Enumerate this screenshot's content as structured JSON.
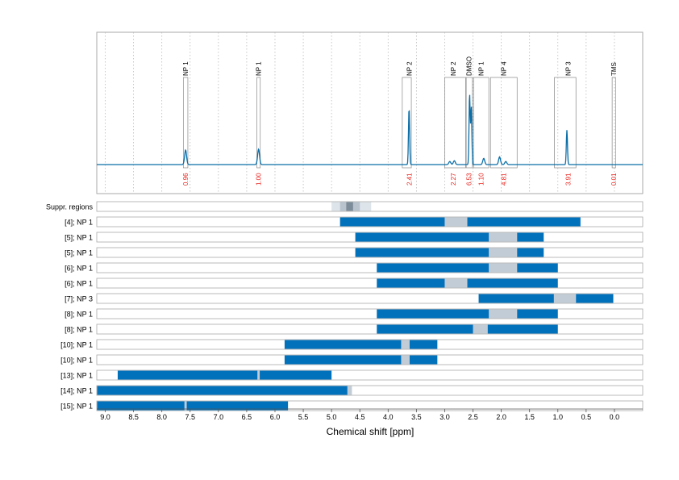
{
  "chart_data": {
    "type": "nmr-spectrum-with-range-bars",
    "xlabel": "Chemical shift [ppm]",
    "xlim": [
      9.15,
      -0.5
    ],
    "x_ticks": [
      "9.0",
      "8.5",
      "8.0",
      "7.5",
      "7.0",
      "6.5",
      "6.0",
      "5.5",
      "5.0",
      "4.5",
      "4.0",
      "3.5",
      "3.0",
      "2.5",
      "2.0",
      "1.5",
      "1.0",
      "0.5",
      "0.0"
    ],
    "colors": {
      "spectrum": "#0a6ea8",
      "bar": "#0271bb",
      "gap": "#c2ccd6",
      "box": "#888888",
      "label_red": "#e8251f",
      "region": "#dde4ea",
      "region_dark": "#7d8c99"
    },
    "spectrum_peaks": [
      {
        "ppm": 7.58,
        "height": 0.19
      },
      {
        "ppm": 6.29,
        "height": 0.2
      },
      {
        "ppm": 3.63,
        "height": 0.74
      },
      {
        "ppm": 2.91,
        "height": 0.04
      },
      {
        "ppm": 2.83,
        "height": 0.05
      },
      {
        "ppm": 2.56,
        "height": 0.92
      },
      {
        "ppm": 2.53,
        "height": 0.75
      },
      {
        "ppm": 2.31,
        "height": 0.08
      },
      {
        "ppm": 2.03,
        "height": 0.1
      },
      {
        "ppm": 1.92,
        "height": 0.04
      },
      {
        "ppm": 0.84,
        "height": 0.45
      }
    ],
    "annotations": [
      {
        "label": "NP 1",
        "center": 7.58,
        "box": [
          7.62,
          7.54
        ],
        "integral": "0.96"
      },
      {
        "label": "NP 1",
        "center": 6.29,
        "box": [
          6.32,
          6.26
        ],
        "integral": "1.00"
      },
      {
        "label": "NP 2",
        "center": 3.63,
        "box": [
          3.75,
          3.59
        ],
        "integral": "2.41"
      },
      {
        "label": "NP 2",
        "center": 2.85,
        "box": [
          3.0,
          2.63
        ],
        "integral": "2.27"
      },
      {
        "label": "DMSO",
        "center": 2.57,
        "box": [
          2.62,
          2.51
        ],
        "integral": "6.53"
      },
      {
        "label": "NP 1",
        "center": 2.36,
        "box": [
          2.49,
          2.22
        ],
        "integral": "1.10"
      },
      {
        "label": "NP 4",
        "center": 1.96,
        "box": [
          2.19,
          1.72
        ],
        "integral": "4.81"
      },
      {
        "label": "NP 3",
        "center": 0.82,
        "box": [
          1.06,
          0.68
        ],
        "integral": "3.91"
      },
      {
        "label": "TMS",
        "center": 0.01,
        "box": [
          0.04,
          -0.02
        ],
        "integral": "0.01"
      }
    ],
    "suppressed_regions": {
      "label": "Suppr. regions",
      "light": [
        5.0,
        4.3
      ],
      "mid": [
        4.85,
        4.5
      ],
      "dark": [
        4.74,
        4.62
      ]
    },
    "rows": [
      {
        "label": "[4]; NP 1",
        "segments": [
          [
            4.85,
            3.0
          ],
          [
            2.6,
            0.6
          ]
        ],
        "gaps": [
          [
            3.0,
            2.6
          ]
        ]
      },
      {
        "label": "[5]; NP 1",
        "segments": [
          [
            4.58,
            2.22
          ],
          [
            1.72,
            1.25
          ]
        ],
        "gaps": [
          [
            2.22,
            1.72
          ]
        ]
      },
      {
        "label": "[5]; NP 1",
        "segments": [
          [
            4.58,
            2.22
          ],
          [
            1.72,
            1.25
          ]
        ],
        "gaps": [
          [
            2.22,
            1.72
          ]
        ]
      },
      {
        "label": "[6]; NP 1",
        "segments": [
          [
            4.2,
            2.22
          ],
          [
            1.72,
            1.0
          ]
        ],
        "gaps": [
          [
            2.22,
            1.72
          ]
        ]
      },
      {
        "label": "[6]; NP 1",
        "segments": [
          [
            4.2,
            3.0
          ],
          [
            2.6,
            1.0
          ]
        ],
        "gaps": [
          [
            3.0,
            2.6
          ]
        ]
      },
      {
        "label": "[7]; NP 3",
        "segments": [
          [
            2.4,
            1.07
          ],
          [
            0.68,
            0.02
          ]
        ],
        "gaps": [
          [
            1.07,
            0.68
          ]
        ]
      },
      {
        "label": "[8]; NP 1",
        "segments": [
          [
            4.2,
            2.22
          ],
          [
            1.72,
            1.0
          ]
        ],
        "gaps": [
          [
            2.22,
            1.72
          ]
        ]
      },
      {
        "label": "[8]; NP 1",
        "segments": [
          [
            4.2,
            2.5
          ],
          [
            2.24,
            1.0
          ]
        ],
        "gaps": [
          [
            2.5,
            2.24
          ]
        ]
      },
      {
        "label": "[10]; NP 1",
        "segments": [
          [
            5.83,
            3.77
          ],
          [
            3.62,
            3.13
          ]
        ],
        "gaps": [
          [
            3.77,
            3.62
          ]
        ]
      },
      {
        "label": "[10]; NP 1",
        "segments": [
          [
            5.83,
            3.77
          ],
          [
            3.62,
            3.13
          ]
        ],
        "gaps": [
          [
            3.77,
            3.62
          ]
        ]
      },
      {
        "label": "[13]; NP 1",
        "segments": [
          [
            8.78,
            6.31
          ],
          [
            6.27,
            5.0
          ]
        ],
        "gaps": [
          [
            6.31,
            6.27
          ]
        ]
      },
      {
        "label": "[14]; NP 1",
        "segments": [
          [
            9.15,
            4.72
          ]
        ],
        "gaps": [
          [
            4.72,
            4.64
          ]
        ]
      },
      {
        "label": "[15]; NP 1",
        "segments": [
          [
            9.15,
            7.6
          ],
          [
            7.56,
            5.77
          ]
        ],
        "gaps": [
          [
            7.6,
            7.56
          ]
        ]
      }
    ]
  }
}
